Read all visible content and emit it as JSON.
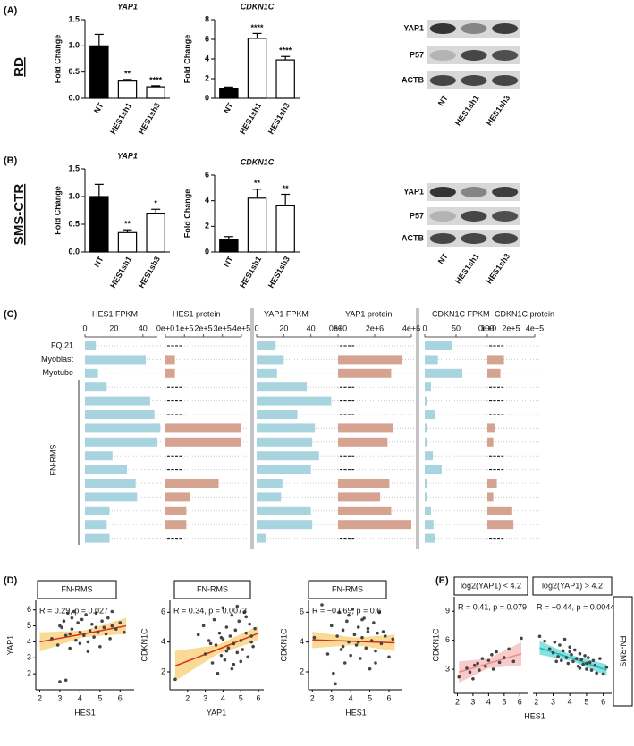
{
  "labels": {
    "a": "(A)",
    "b": "(B)",
    "c": "(C)",
    "d": "(D)",
    "e": "(E)",
    "rd": "RD",
    "sms": "SMS-CTR"
  },
  "blots": [
    {
      "rows": [
        "YAP1",
        "P57",
        "ACTB"
      ],
      "lanes": [
        "NT",
        "HES1sh1",
        "HES1sh3"
      ]
    },
    {
      "rows": [
        "YAP1",
        "P57",
        "ACTB"
      ],
      "lanes": [
        "NT",
        "HES1sh1",
        "HES1sh3"
      ]
    }
  ],
  "panel_c": {
    "rows": [
      "FQ 21",
      "Myoblast",
      "Myotube",
      null,
      null,
      null,
      null,
      null,
      null,
      null,
      null,
      null,
      null,
      null,
      null
    ],
    "group_label": "FN-RMS"
  },
  "chart_data": [
    {
      "type": "bar",
      "title": "YAP1",
      "y_label": "Fold Change",
      "categories": [
        "NT",
        "HES1sh1",
        "HES1sh3"
      ],
      "values": [
        1.0,
        0.33,
        0.22
      ],
      "errors": [
        0.22,
        0.03,
        0.02
      ],
      "annotations": [
        null,
        "**",
        "****"
      ],
      "colors": [
        "#000000",
        "#ffffff",
        "#ffffff"
      ],
      "ylim": [
        0,
        1.5
      ],
      "yticks": [
        {
          "value": 0,
          "label": "0.0"
        },
        0.5,
        {
          "value": 1,
          "label": "1.0"
        },
        1.5
      ]
    },
    {
      "type": "bar",
      "title": "CDKN1C",
      "y_label": "Fold Change",
      "categories": [
        "NT",
        "HES1sh1",
        "HES1sh3"
      ],
      "values": [
        1.0,
        6.1,
        3.9
      ],
      "errors": [
        0.15,
        0.5,
        0.35
      ],
      "annotations": [
        null,
        "****",
        "****"
      ],
      "colors": [
        "#000000",
        "#ffffff",
        "#ffffff"
      ],
      "ylim": [
        0,
        8
      ],
      "yticks": [
        0,
        2,
        4,
        6,
        8
      ]
    },
    {
      "type": "bar",
      "title": "YAP1",
      "y_label": "Fold Change",
      "categories": [
        "NT",
        "HES1sh1",
        "HES1sh3"
      ],
      "values": [
        1.0,
        0.35,
        0.7
      ],
      "errors": [
        0.22,
        0.05,
        0.07
      ],
      "annotations": [
        null,
        "**",
        "*"
      ],
      "colors": [
        "#000000",
        "#ffffff",
        "#ffffff"
      ],
      "ylim": [
        0,
        1.5
      ],
      "yticks": [
        {
          "value": 0,
          "label": "0.0"
        },
        0.5,
        {
          "value": 1,
          "label": "1.0"
        },
        1.5
      ]
    },
    {
      "type": "bar",
      "title": "CDKN1C",
      "y_label": "Fold Change",
      "categories": [
        "NT",
        "HES1sh1",
        "HES1sh3"
      ],
      "values": [
        1.0,
        4.2,
        3.6
      ],
      "errors": [
        0.2,
        0.7,
        0.9
      ],
      "annotations": [
        null,
        "**",
        "**"
      ],
      "colors": [
        "#000000",
        "#ffffff",
        "#ffffff"
      ],
      "ylim": [
        0,
        6
      ],
      "yticks": [
        0,
        2,
        4,
        6
      ]
    },
    {
      "type": "hbar",
      "title": "HES1 FPKM",
      "values": [
        7.5,
        42,
        9,
        15,
        45,
        48,
        52,
        50,
        19,
        29,
        35,
        36,
        17,
        15,
        17
      ],
      "color": "#a8d4e0",
      "xlim": [
        0,
        50
      ],
      "xticks": [
        0,
        20,
        40
      ]
    },
    {
      "type": "hbar",
      "title": "HES1 protein",
      "values": [
        null,
        50000,
        50000,
        null,
        null,
        null,
        400000,
        400000,
        null,
        null,
        280000,
        130000,
        110000,
        110000,
        null
      ],
      "color": "#d6a391",
      "xlim": [
        0,
        400000
      ],
      "xticks": [
        {
          "value": 0,
          "label": "0e+0"
        },
        {
          "value": 100000,
          "label": "1e+5"
        },
        {
          "value": 200000,
          "label": "2e+5"
        },
        {
          "value": 300000,
          "label": "3e+5"
        },
        {
          "value": 400000,
          "label": "4e+5"
        }
      ]
    },
    {
      "type": "hbar",
      "title": "YAP1 FPKM",
      "values": [
        14,
        20,
        15,
        37,
        55,
        30,
        43,
        41,
        46,
        40,
        19,
        18,
        40,
        41,
        7
      ],
      "color": "#a8d4e0",
      "xlim": [
        0,
        60
      ],
      "xticks": [
        0,
        20,
        40,
        60
      ]
    },
    {
      "type": "hbar",
      "title": "YAP1 protein",
      "values": [
        null,
        3500000,
        2900000,
        null,
        null,
        null,
        3000000,
        2700000,
        null,
        null,
        2800000,
        2300000,
        2900000,
        4000000,
        null
      ],
      "color": "#d6a391",
      "xlim": [
        0,
        4000000
      ],
      "xticks": [
        {
          "value": 0,
          "label": "0e+0"
        },
        {
          "value": 2000000,
          "label": "2e+6"
        },
        {
          "value": 4000000,
          "label": "4e+6"
        }
      ]
    },
    {
      "type": "hbar",
      "title": "CDKN1C FPKM",
      "values": [
        43,
        21,
        60,
        10,
        4,
        16,
        3,
        3,
        13,
        27,
        4,
        4,
        10,
        14,
        17
      ],
      "color": "#a8d4e0",
      "xlim": [
        0,
        100
      ],
      "xticks": [
        0,
        50,
        100
      ]
    },
    {
      "type": "hbar",
      "title": "CDKN1C protein",
      "values": [
        null,
        140000,
        110000,
        null,
        null,
        null,
        60000,
        50000,
        null,
        null,
        80000,
        50000,
        210000,
        220000,
        null
      ],
      "color": "#d6a391",
      "xlim": [
        0,
        400000
      ],
      "xticks": [
        {
          "value": 0,
          "label": "0e+0"
        },
        {
          "value": 200000,
          "label": "2e+5"
        },
        {
          "value": 400000,
          "label": "4e+5"
        }
      ]
    },
    {
      "type": "scatter",
      "strip": "FN-RMS",
      "annotation": "R = 0.29, p = 0.027",
      "x_label": "HES1",
      "y_label": "YAP1",
      "x": [
        2.6,
        2.9,
        3.0,
        3.1,
        3.2,
        3.3,
        3.4,
        3.5,
        3.5,
        3.6,
        3.7,
        3.8,
        3.9,
        4.0,
        4.0,
        4.1,
        4.2,
        4.3,
        4.4,
        4.5,
        4.6,
        4.7,
        4.8,
        4.9,
        5.0,
        5.1,
        5.2,
        5.3,
        5.4,
        5.5,
        5.6,
        5.8,
        6.0,
        6.2,
        3.0,
        3.3,
        3.6,
        4.4,
        4.8,
        5.6
      ],
      "y": [
        4.2,
        3.8,
        1.5,
        4.9,
        5.3,
        1.6,
        5.8,
        4.5,
        3.6,
        4.8,
        5.9,
        4.1,
        5.2,
        4.6,
        3.9,
        5.4,
        4.4,
        5.7,
        4.0,
        4.7,
        5.1,
        4.3,
        5.8,
        4.6,
        3.7,
        5.3,
        4.9,
        4.5,
        5.5,
        4.2,
        5.0,
        4.8,
        5.2,
        4.6,
        5.0,
        4.4,
        5.5,
        3.4,
        4.9,
        5.9
      ],
      "xlim": [
        1.8,
        6.7
      ],
      "ylim": [
        1,
        6.6
      ],
      "xticks": [
        2,
        3,
        4,
        5,
        6
      ],
      "yticks": [
        2,
        3,
        4,
        5,
        6
      ],
      "fit_x": [
        2,
        4.2,
        6.3
      ],
      "fit_y": [
        4.0,
        4.5,
        5.0
      ],
      "band_lower": [
        3.4,
        4.3,
        4.5
      ],
      "band_upper": [
        4.6,
        4.7,
        5.5
      ],
      "line_color": "#d7301f",
      "band_color": "#f7c24c",
      "point_color": "#444444"
    },
    {
      "type": "scatter",
      "strip": "FN-RMS",
      "annotation": "R = 0.34, p = 0.0073",
      "x_label": "YAP1",
      "y_label": "CDKN1C",
      "x": [
        1.3,
        2.6,
        3.0,
        3.2,
        3.4,
        3.5,
        3.6,
        3.7,
        3.8,
        3.9,
        4.0,
        4.0,
        4.1,
        4.2,
        4.3,
        4.4,
        4.5,
        4.5,
        4.6,
        4.7,
        4.8,
        4.9,
        5.0,
        5.0,
        5.1,
        5.2,
        5.3,
        5.4,
        5.5,
        5.6,
        5.7,
        5.8,
        3.3,
        4.2,
        4.8,
        5.3,
        3.9,
        4.6,
        5.6,
        2.9
      ],
      "y": [
        1.5,
        4.5,
        3.2,
        4.1,
        2.6,
        5.5,
        3.8,
        1.9,
        4.6,
        3.1,
        6.3,
        4.2,
        2.8,
        5.0,
        3.6,
        4.4,
        2.2,
        5.8,
        3.9,
        4.8,
        3.3,
        5.4,
        2.7,
        4.1,
        3.5,
        6.0,
        4.6,
        3.0,
        5.2,
        4.0,
        3.7,
        4.9,
        3.9,
        3.4,
        6.4,
        5.7,
        4.3,
        2.5,
        4.4,
        5.1
      ],
      "xlim": [
        1.0,
        6.3
      ],
      "ylim": [
        0.8,
        6.8
      ],
      "xticks": [
        2,
        3,
        4,
        5,
        6
      ],
      "yticks": [
        2,
        4,
        6
      ],
      "fit_x": [
        1.3,
        3.7,
        6.0
      ],
      "fit_y": [
        2.4,
        3.5,
        4.6
      ],
      "band_lower": [
        1.4,
        3.2,
        4.1
      ],
      "band_upper": [
        3.4,
        3.8,
        5.1
      ],
      "line_color": "#d7301f",
      "band_color": "#f7c24c",
      "point_color": "#444444"
    },
    {
      "type": "scatter",
      "strip": "FN-RMS",
      "annotation": "R = −0.069, p = 0.6",
      "x_label": "HES1",
      "y_label": "CDKN1C",
      "x": [
        2.1,
        2.5,
        2.8,
        3.0,
        3.1,
        3.3,
        3.4,
        3.5,
        3.6,
        3.7,
        3.8,
        3.9,
        4.0,
        4.1,
        4.2,
        4.3,
        4.4,
        4.5,
        4.6,
        4.7,
        4.8,
        4.9,
        5.0,
        5.1,
        5.2,
        5.3,
        5.4,
        5.5,
        5.6,
        5.8,
        6.0,
        6.2,
        3.2,
        3.9,
        4.4,
        4.9,
        5.3,
        5.7,
        3.6,
        4.6
      ],
      "y": [
        4.3,
        6.5,
        3.2,
        5.1,
        1.9,
        4.4,
        6.0,
        3.5,
        4.8,
        2.6,
        5.4,
        4.0,
        3.1,
        6.2,
        4.5,
        3.8,
        5.0,
        2.9,
        4.3,
        5.6,
        3.6,
        4.7,
        2.2,
        4.1,
        5.3,
        3.4,
        4.6,
        6.0,
        3.9,
        4.4,
        3.0,
        4.2,
        1.2,
        5.8,
        4.0,
        4.9,
        2.6,
        4.7,
        3.7,
        5.5
      ],
      "xlim": [
        1.8,
        6.7
      ],
      "ylim": [
        0.8,
        6.8
      ],
      "xticks": [
        2,
        3,
        4,
        5,
        6
      ],
      "yticks": [
        2,
        4,
        6
      ],
      "fit_x": [
        2,
        4.2,
        6.3
      ],
      "fit_y": [
        4.15,
        4.05,
        3.95
      ],
      "band_lower": [
        3.6,
        3.8,
        3.4
      ],
      "band_upper": [
        4.7,
        4.3,
        4.5
      ],
      "line_color": "#d7301f",
      "band_color": "#f7c24c",
      "point_color": "#444444"
    },
    {
      "type": "scatter",
      "strip": "log2(YAP1) < 4.2",
      "annotation": "R = 0.41, p = 0.079",
      "x_label": "HES1",
      "y_label": "CDKN1C",
      "x": [
        2.1,
        2.6,
        2.8,
        3.0,
        3.1,
        3.3,
        3.4,
        3.6,
        3.8,
        4.0,
        4.2,
        4.3,
        4.5,
        4.7,
        5.0,
        5.3,
        5.6,
        6.1
      ],
      "y": [
        2.2,
        3.1,
        2.7,
        2.0,
        3.4,
        3.6,
        2.9,
        4.1,
        3.3,
        3.9,
        4.5,
        3.0,
        4.8,
        3.7,
        4.2,
        5.1,
        3.8,
        6.2
      ],
      "xlim": [
        1.8,
        6.5
      ],
      "ylim": [
        0.5,
        10.5
      ],
      "xticks": [
        2,
        3,
        4,
        5,
        6
      ],
      "yticks": [
        3,
        6,
        9
      ],
      "fit_x": [
        2.1,
        4.0,
        6.1
      ],
      "fit_y": [
        2.7,
        3.6,
        4.6
      ],
      "band_lower": [
        1.6,
        3.1,
        3.4
      ],
      "band_upper": [
        3.8,
        4.1,
        5.8
      ],
      "line_color": "#f08a8a",
      "band_color": "#f4a6a6",
      "point_color": "#444444"
    },
    {
      "type": "scatter",
      "strip": "log2(YAP1) > 4.2",
      "side_strip": "FN-RMS",
      "annotation": "R = −0.44, p = 0.0044",
      "x": [
        2.2,
        2.5,
        2.8,
        3.0,
        3.1,
        3.3,
        3.4,
        3.5,
        3.6,
        3.7,
        3.8,
        3.9,
        4.0,
        4.1,
        4.2,
        4.3,
        4.4,
        4.5,
        4.6,
        4.7,
        4.8,
        4.9,
        5.0,
        5.1,
        5.2,
        5.3,
        5.4,
        5.5,
        5.6,
        5.8,
        6.0,
        6.2,
        3.2,
        4.0,
        4.6,
        5.0
      ],
      "y": [
        6.4,
        5.9,
        5.1,
        4.7,
        5.8,
        4.3,
        5.5,
        3.9,
        4.9,
        6.1,
        4.2,
        3.6,
        5.3,
        4.5,
        3.8,
        5.0,
        4.1,
        3.3,
        4.6,
        4.0,
        3.5,
        4.4,
        3.0,
        4.2,
        3.7,
        2.9,
        3.9,
        3.4,
        2.6,
        4.1,
        2.5,
        3.2,
        3.8,
        4.8,
        3.1,
        3.6
      ],
      "xlim": [
        1.8,
        6.5
      ],
      "ylim": [
        0.5,
        10.5
      ],
      "xticks": [
        2,
        3,
        4,
        5,
        6
      ],
      "fit_x": [
        2.2,
        4.2,
        6.2
      ],
      "fit_y": [
        5.2,
        4.1,
        2.9
      ],
      "band_lower": [
        4.5,
        3.8,
        2.3
      ],
      "band_upper": [
        5.9,
        4.4,
        3.5
      ],
      "line_color": "#1fb8b8",
      "band_color": "#38cccc",
      "point_color": "#444444"
    }
  ]
}
